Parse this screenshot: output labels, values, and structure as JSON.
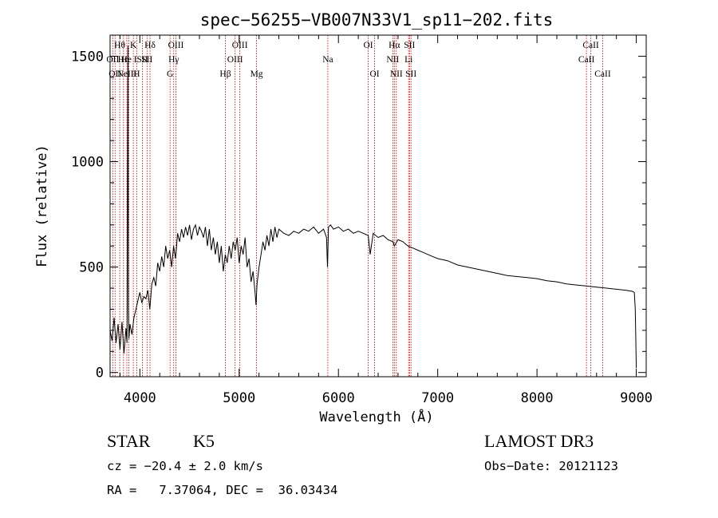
{
  "chart_data": {
    "type": "line",
    "title": "spec−56255−VB007N33V1_sp11−202.fits",
    "xlabel": "Wavelength (Å)",
    "ylabel": "Flux (relative)",
    "xlim": [
      3700,
      9100
    ],
    "ylim": [
      -20,
      1600
    ],
    "xticks": [
      4000,
      5000,
      6000,
      7000,
      8000,
      9000
    ],
    "xtick_labels": [
      "4000",
      "5000",
      "6000",
      "7000",
      "8000",
      "9000"
    ],
    "yticks": [
      0,
      500,
      1000,
      1500
    ],
    "ytick_labels": [
      "0",
      "500",
      "1000",
      "1500"
    ],
    "grid": false,
    "series": [
      {
        "name": "flux",
        "x": [
          3700,
          3720,
          3740,
          3760,
          3780,
          3800,
          3820,
          3840,
          3860,
          3870,
          3880,
          3885,
          3890,
          3900,
          3920,
          3940,
          3960,
          3980,
          4000,
          4020,
          4040,
          4060,
          4080,
          4100,
          4120,
          4140,
          4160,
          4180,
          4200,
          4220,
          4240,
          4260,
          4280,
          4300,
          4320,
          4340,
          4360,
          4380,
          4400,
          4420,
          4440,
          4460,
          4480,
          4500,
          4520,
          4540,
          4560,
          4580,
          4600,
          4620,
          4640,
          4660,
          4680,
          4700,
          4720,
          4740,
          4760,
          4780,
          4800,
          4820,
          4840,
          4860,
          4880,
          4900,
          4920,
          4940,
          4960,
          4980,
          5000,
          5020,
          5040,
          5060,
          5080,
          5100,
          5120,
          5140,
          5160,
          5170,
          5180,
          5200,
          5220,
          5240,
          5260,
          5280,
          5300,
          5320,
          5340,
          5360,
          5380,
          5400,
          5450,
          5500,
          5550,
          5600,
          5650,
          5700,
          5750,
          5800,
          5850,
          5880,
          5890,
          5900,
          5920,
          5950,
          6000,
          6050,
          6100,
          6150,
          6200,
          6250,
          6300,
          6320,
          6350,
          6400,
          6450,
          6500,
          6550,
          6563,
          6600,
          6650,
          6700,
          6750,
          6800,
          6850,
          6900,
          6950,
          7000,
          7100,
          7200,
          7300,
          7400,
          7500,
          7600,
          7700,
          7800,
          7900,
          8000,
          8100,
          8200,
          8300,
          8400,
          8500,
          8600,
          8700,
          8800,
          8900,
          8960,
          8980,
          8990,
          9000
        ],
        "values": [
          200,
          150,
          260,
          140,
          230,
          110,
          240,
          90,
          210,
          140,
          1550,
          300,
          160,
          230,
          180,
          260,
          300,
          340,
          380,
          330,
          360,
          350,
          390,
          300,
          420,
          450,
          410,
          520,
          480,
          550,
          500,
          600,
          540,
          580,
          500,
          600,
          540,
          660,
          620,
          680,
          640,
          690,
          650,
          700,
          630,
          680,
          700,
          650,
          690,
          670,
          640,
          690,
          600,
          680,
          580,
          640,
          560,
          620,
          520,
          600,
          480,
          560,
          520,
          600,
          540,
          620,
          580,
          640,
          520,
          600,
          560,
          640,
          500,
          540,
          430,
          480,
          380,
          320,
          420,
          500,
          560,
          620,
          580,
          650,
          600,
          680,
          620,
          690,
          640,
          680,
          660,
          650,
          670,
          660,
          680,
          670,
          690,
          660,
          680,
          640,
          500,
          690,
          700,
          680,
          690,
          670,
          680,
          660,
          670,
          660,
          650,
          560,
          660,
          640,
          650,
          630,
          620,
          600,
          630,
          620,
          600,
          590,
          580,
          570,
          560,
          550,
          540,
          530,
          510,
          500,
          490,
          480,
          470,
          460,
          455,
          450,
          445,
          435,
          430,
          420,
          415,
          410,
          405,
          400,
          395,
          390,
          385,
          380,
          300,
          20
        ]
      }
    ],
    "lines": [
      {
        "x": 3727,
        "label": "OII",
        "row": 1
      },
      {
        "x": 3750,
        "label": "OII",
        "row": 2
      },
      {
        "x": 3797,
        "label": "Hθ",
        "row": 0
      },
      {
        "x": 3835,
        "label": "Hη",
        "row": 1
      },
      {
        "x": 3869,
        "label": "NeIII",
        "row": 2
      },
      {
        "x": 3889,
        "label": "He I",
        "row": 1
      },
      {
        "x": 3934,
        "label": "K",
        "row": 0
      },
      {
        "x": 3968,
        "label": "H",
        "row": 2
      },
      {
        "x": 4026,
        "label": "SII",
        "row": 1
      },
      {
        "x": 4072,
        "label": "SII",
        "row": 1
      },
      {
        "x": 4102,
        "label": "Hδ",
        "row": 0
      },
      {
        "x": 4304,
        "label": "G",
        "row": 2
      },
      {
        "x": 4341,
        "label": "Hγ",
        "row": 1
      },
      {
        "x": 4363,
        "label": "OIII",
        "row": 0
      },
      {
        "x": 4861,
        "label": "Hβ",
        "row": 2
      },
      {
        "x": 4959,
        "label": "OIII",
        "row": 1
      },
      {
        "x": 5007,
        "label": "OIII",
        "row": 0
      },
      {
        "x": 5175,
        "label": "Mg",
        "row": 2
      },
      {
        "x": 5893,
        "label": "Na",
        "row": 1
      },
      {
        "x": 6300,
        "label": "OI",
        "row": 0
      },
      {
        "x": 6364,
        "label": "OI",
        "row": 2
      },
      {
        "x": 6548,
        "label": "NII",
        "row": 1
      },
      {
        "x": 6563,
        "label": "Hα",
        "row": 0
      },
      {
        "x": 6583,
        "label": "NII",
        "row": 2
      },
      {
        "x": 6707,
        "label": "Li",
        "row": 1
      },
      {
        "x": 6716,
        "label": "SII",
        "row": 0
      },
      {
        "x": 6731,
        "label": "SII",
        "row": 2
      },
      {
        "x": 8498,
        "label": "CaII",
        "row": 1
      },
      {
        "x": 8542,
        "label": "CaII",
        "row": 0
      },
      {
        "x": 8662,
        "label": "CaII",
        "row": 2
      }
    ]
  },
  "info": {
    "class_label": "STAR",
    "subclass": "K5",
    "survey": "LAMOST DR3",
    "redshift": "cz = −20.4 ± 2.0 km/s",
    "obs_date": "Obs−Date: 20121123",
    "coords": "RA =   7.37064, DEC =  36.03434"
  }
}
